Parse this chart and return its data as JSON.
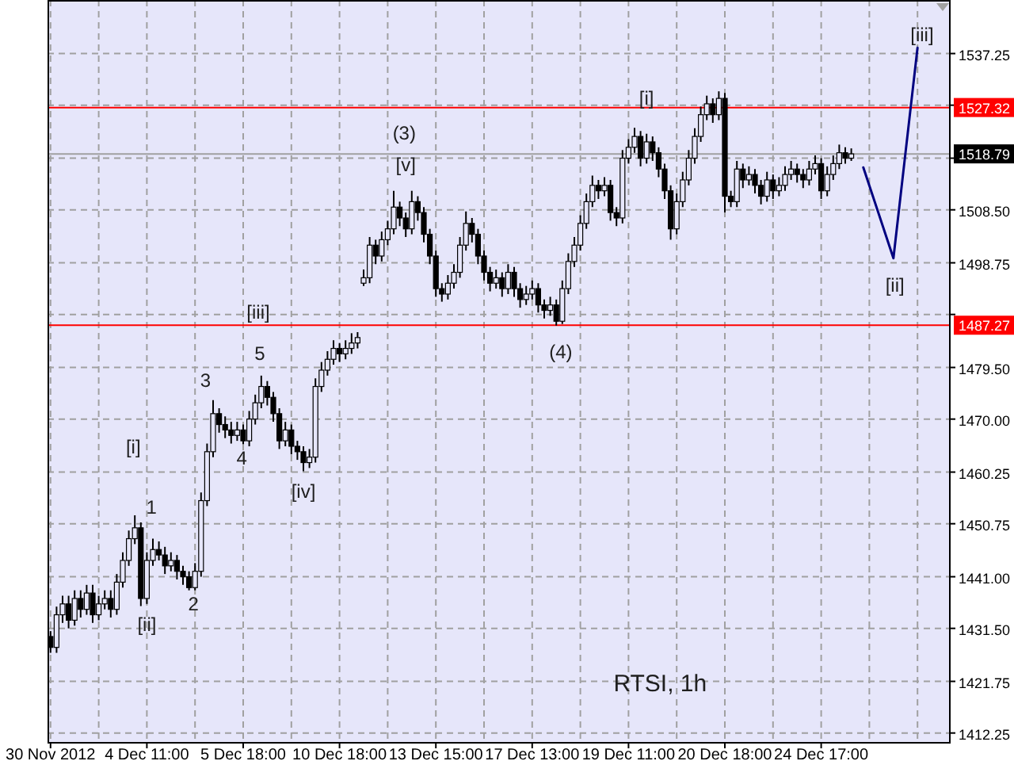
{
  "chart_data": {
    "type": "candlestick",
    "categories": [
      "30 Nov 2012",
      null,
      null,
      null,
      null,
      null,
      null,
      null,
      null,
      null,
      null,
      null,
      null,
      null,
      null,
      null,
      "4 Dec 11:00",
      null,
      null,
      null,
      null,
      null,
      null,
      null,
      null,
      null,
      null,
      null,
      null,
      null,
      null,
      null,
      "5 Dec 18:00",
      null,
      null,
      null,
      null,
      null,
      null,
      null,
      null,
      null,
      null,
      null,
      null,
      null,
      null,
      null,
      "10 Dec 18:00",
      null,
      null,
      null,
      null,
      null,
      null,
      null,
      null,
      null,
      null,
      null,
      null,
      null,
      null,
      null,
      "13 Dec 15:00",
      null,
      null,
      null,
      null,
      null,
      null,
      null,
      null,
      null,
      null,
      null,
      null,
      null,
      null,
      null,
      "17 Dec 13:00",
      null,
      null,
      null,
      null,
      null,
      null,
      null,
      null,
      null,
      null,
      null,
      null,
      null,
      null,
      null,
      "19 Dec 11:00",
      null,
      null,
      null,
      null,
      null,
      null,
      null,
      null,
      null,
      null,
      null,
      null,
      null,
      null,
      null,
      "20 Dec 18:00",
      null,
      null,
      null,
      null,
      null,
      null,
      null,
      null,
      null,
      null,
      null,
      null,
      null,
      null,
      null,
      "24 Dec 17:00",
      null,
      null,
      null,
      null,
      null,
      null,
      null,
      null,
      null,
      null,
      null,
      null,
      null,
      null,
      null,
      null,
      null,
      null,
      null,
      null,
      null
    ],
    "ohlc": [
      [
        1430,
        1431,
        1427,
        1428
      ],
      [
        1428,
        1435.5,
        1427,
        1434
      ],
      [
        1434,
        1437.5,
        1432.5,
        1436
      ],
      [
        1436,
        1437.5,
        1431.5,
        1433
      ],
      [
        1433,
        1438.5,
        1432,
        1437
      ],
      [
        1437,
        1438.5,
        1433.5,
        1435
      ],
      [
        1435,
        1439.5,
        1434,
        1438
      ],
      [
        1438,
        1439.5,
        1432.5,
        1434
      ],
      [
        1434,
        1437.5,
        1433,
        1436
      ],
      [
        1436,
        1438.5,
        1435,
        1437
      ],
      [
        1437,
        1438.5,
        1433.5,
        1435
      ],
      [
        1435,
        1441.5,
        1434,
        1440
      ],
      [
        1440,
        1445.5,
        1439,
        1444
      ],
      [
        1444,
        1449.5,
        1443,
        1448
      ],
      [
        1448,
        1452.3,
        1447,
        1450
      ],
      [
        1450,
        1451,
        1435.6,
        1437
      ],
      [
        1437,
        1445.5,
        1436,
        1444
      ],
      [
        1444,
        1448,
        1443,
        1446
      ],
      [
        1446,
        1447.5,
        1444,
        1445
      ],
      [
        1445,
        1446.5,
        1441.5,
        1443
      ],
      [
        1443,
        1445.5,
        1442,
        1444
      ],
      [
        1444,
        1445,
        1440.5,
        1442
      ],
      [
        1442,
        1443,
        1439.5,
        1441
      ],
      [
        1441,
        1442,
        1438.5,
        1439
      ],
      [
        1439,
        1443.5,
        1438.5,
        1442
      ],
      [
        1442,
        1456.5,
        1441,
        1455
      ],
      [
        1455,
        1465.5,
        1454,
        1464
      ],
      [
        1464,
        1473.5,
        1463,
        1471
      ],
      [
        1471,
        1472,
        1467.5,
        1469
      ],
      [
        1469,
        1470.5,
        1466.5,
        1468
      ],
      [
        1468,
        1469.5,
        1465.5,
        1467
      ],
      [
        1467,
        1469.5,
        1466,
        1468
      ],
      [
        1468,
        1469,
        1465.4,
        1466
      ],
      [
        1466,
        1471.5,
        1465,
        1470
      ],
      [
        1470,
        1474.5,
        1469,
        1473
      ],
      [
        1473,
        1478,
        1472,
        1476
      ],
      [
        1476,
        1477,
        1472.5,
        1474
      ],
      [
        1474,
        1475,
        1469.5,
        1471
      ],
      [
        1471,
        1472,
        1464.5,
        1466
      ],
      [
        1466,
        1469.5,
        1465,
        1468
      ],
      [
        1468,
        1469,
        1463.5,
        1465
      ],
      [
        1465,
        1466,
        1462.5,
        1464
      ],
      [
        1464,
        1465,
        1460.4,
        1462
      ],
      [
        1462,
        1464.5,
        1461,
        1463
      ],
      [
        1463,
        1477.5,
        1462,
        1476
      ],
      [
        1476,
        1480.5,
        1475,
        1479
      ],
      [
        1479,
        1482.5,
        1478,
        1481
      ],
      [
        1481,
        1484.5,
        1480,
        1483
      ],
      [
        1483,
        1484,
        1480.5,
        1482
      ],
      [
        1482,
        1484.5,
        1481,
        1483
      ],
      [
        1483,
        1485.8,
        1482,
        1484
      ],
      [
        1484,
        1486,
        1483,
        1485
      ],
      [
        1495,
        1497.5,
        1494.5,
        1496
      ],
      [
        1496,
        1503.5,
        1495,
        1502
      ],
      [
        1502,
        1503,
        1498.5,
        1500
      ],
      [
        1500,
        1504.5,
        1499,
        1503
      ],
      [
        1503,
        1506.5,
        1502,
        1505
      ],
      [
        1505,
        1512,
        1504,
        1509
      ],
      [
        1509,
        1510,
        1505.5,
        1507
      ],
      [
        1507,
        1508,
        1503.5,
        1505
      ],
      [
        1505,
        1512,
        1504,
        1510
      ],
      [
        1510,
        1511,
        1506.5,
        1508
      ],
      [
        1508,
        1509,
        1502.5,
        1504
      ],
      [
        1504,
        1505,
        1498.5,
        1500
      ],
      [
        1500,
        1501,
        1492.5,
        1494
      ],
      [
        1494,
        1495,
        1491.6,
        1493
      ],
      [
        1493,
        1496.5,
        1492,
        1495
      ],
      [
        1495,
        1498.5,
        1494,
        1497
      ],
      [
        1497,
        1503.5,
        1496,
        1502
      ],
      [
        1502,
        1508.2,
        1501,
        1506
      ],
      [
        1506,
        1507,
        1502.5,
        1504
      ],
      [
        1504,
        1505,
        1498.5,
        1500
      ],
      [
        1500,
        1501,
        1495.5,
        1497
      ],
      [
        1497,
        1498,
        1493.5,
        1495
      ],
      [
        1495,
        1497.5,
        1494,
        1496
      ],
      [
        1496,
        1497,
        1492.5,
        1494
      ],
      [
        1494,
        1498.5,
        1493,
        1497
      ],
      [
        1497,
        1498,
        1492.5,
        1494
      ],
      [
        1494,
        1495,
        1490.5,
        1492
      ],
      [
        1492,
        1494.5,
        1491,
        1493
      ],
      [
        1493,
        1495.5,
        1492,
        1494
      ],
      [
        1494,
        1495,
        1489.6,
        1491
      ],
      [
        1491,
        1492,
        1488.5,
        1490
      ],
      [
        1490,
        1492.5,
        1489,
        1491
      ],
      [
        1491,
        1492,
        1487.2,
        1488
      ],
      [
        1488,
        1495.5,
        1487.5,
        1494
      ],
      [
        1494,
        1500.5,
        1493,
        1499
      ],
      [
        1499,
        1503.5,
        1498,
        1502
      ],
      [
        1502,
        1507.5,
        1501,
        1506
      ],
      [
        1506,
        1511.5,
        1505,
        1510
      ],
      [
        1510,
        1514.8,
        1509,
        1513
      ],
      [
        1513,
        1514,
        1510.5,
        1512
      ],
      [
        1512,
        1514.5,
        1511,
        1513
      ],
      [
        1513,
        1514,
        1506.5,
        1508
      ],
      [
        1508,
        1509,
        1505.5,
        1507
      ],
      [
        1507,
        1519.5,
        1506,
        1518
      ],
      [
        1518,
        1521.5,
        1517,
        1520
      ],
      [
        1520,
        1523.6,
        1519,
        1522
      ],
      [
        1522,
        1523,
        1516.5,
        1518
      ],
      [
        1518,
        1522.5,
        1517,
        1521
      ],
      [
        1521,
        1522,
        1517.5,
        1519
      ],
      [
        1519,
        1520,
        1514.5,
        1516
      ],
      [
        1516,
        1517,
        1510.5,
        1512
      ],
      [
        1512,
        1513,
        1503,
        1505
      ],
      [
        1505,
        1511.5,
        1504,
        1510
      ],
      [
        1510,
        1515.5,
        1509,
        1514
      ],
      [
        1514,
        1519.5,
        1513,
        1518
      ],
      [
        1518,
        1523.5,
        1517,
        1522
      ],
      [
        1522,
        1527.5,
        1521,
        1526
      ],
      [
        1526,
        1529.5,
        1525,
        1528
      ],
      [
        1528,
        1529,
        1524.5,
        1526
      ],
      [
        1526,
        1530.3,
        1525,
        1529
      ],
      [
        1529,
        1530,
        1508,
        1511
      ],
      [
        1511,
        1512,
        1509,
        1510
      ],
      [
        1510,
        1517.5,
        1509,
        1516
      ],
      [
        1516,
        1517,
        1512.5,
        1514
      ],
      [
        1514,
        1516.5,
        1513,
        1515
      ],
      [
        1515,
        1516,
        1511.5,
        1513
      ],
      [
        1513,
        1514,
        1509.5,
        1511
      ],
      [
        1511,
        1515.5,
        1510,
        1514
      ],
      [
        1514,
        1515,
        1510.5,
        1512
      ],
      [
        1512,
        1514.5,
        1511,
        1513
      ],
      [
        1513,
        1516.5,
        1512,
        1515
      ],
      [
        1515,
        1517.5,
        1514,
        1516
      ],
      [
        1516,
        1517,
        1513.5,
        1515
      ],
      [
        1515,
        1516,
        1512.5,
        1514
      ],
      [
        1514,
        1517.5,
        1513,
        1516
      ],
      [
        1516,
        1518.5,
        1515,
        1517
      ],
      [
        1517,
        1518,
        1510.5,
        1512
      ],
      [
        1512,
        1516.5,
        1511,
        1515
      ],
      [
        1515,
        1518.5,
        1514,
        1517
      ],
      [
        1517,
        1520.5,
        1516,
        1519
      ],
      [
        1519,
        1520,
        1517,
        1518
      ],
      [
        1518,
        1519.8,
        1517.5,
        1518.79
      ],
      null,
      null,
      null,
      null,
      null,
      null,
      null,
      null,
      null,
      null,
      null,
      null,
      null,
      null,
      null,
      null
    ],
    "series": [
      {
        "type": "line",
        "color": "#000080",
        "values": [
          null,
          null,
          null,
          null,
          null,
          null,
          null,
          null,
          null,
          null,
          null,
          null,
          null,
          null,
          null,
          null,
          null,
          null,
          null,
          null,
          null,
          null,
          null,
          null,
          null,
          null,
          null,
          null,
          null,
          null,
          null,
          null,
          null,
          null,
          null,
          null,
          null,
          null,
          null,
          null,
          null,
          null,
          null,
          null,
          null,
          null,
          null,
          null,
          null,
          null,
          null,
          null,
          null,
          null,
          null,
          null,
          null,
          null,
          null,
          null,
          null,
          null,
          null,
          null,
          null,
          null,
          null,
          null,
          null,
          null,
          null,
          null,
          null,
          null,
          null,
          null,
          null,
          null,
          null,
          null,
          null,
          null,
          null,
          null,
          null,
          null,
          null,
          null,
          null,
          null,
          null,
          null,
          null,
          null,
          null,
          null,
          null,
          null,
          null,
          null,
          null,
          null,
          null,
          null,
          null,
          null,
          null,
          null,
          null,
          null,
          null,
          null,
          null,
          null,
          null,
          null,
          null,
          null,
          null,
          null,
          null,
          null,
          null,
          null,
          null,
          null,
          null,
          null,
          null,
          null,
          null,
          null,
          null,
          null,
          null,
          1516.3,
          null,
          null,
          null,
          null,
          1499.6,
          null,
          null,
          null,
          1538.3,
          null,
          null,
          null,
          null,
          null
        ]
      }
    ],
    "ylim": [
      1410.6,
      1547.1
    ],
    "yticks": [
      {
        "value": 1412.25,
        "label": "1412.25"
      },
      {
        "value": 1421.75,
        "label": "1421.75"
      },
      {
        "value": 1431.5,
        "label": "1431.50"
      },
      {
        "value": 1441,
        "label": "1441.00"
      },
      {
        "value": 1450.75,
        "label": "1450.75"
      },
      {
        "value": 1460.25,
        "label": "1460.25"
      },
      {
        "value": 1470,
        "label": "1470.00"
      },
      {
        "value": 1479.5,
        "label": "1479.50"
      },
      {
        "value": 1489.25,
        "label": null
      },
      {
        "value": 1498.75,
        "label": "1498.75"
      },
      {
        "value": 1508.5,
        "label": "1508.50"
      },
      {
        "value": 1518,
        "label": null
      },
      {
        "value": 1527.75,
        "label": null
      },
      {
        "value": 1537.25,
        "label": "1537.25"
      }
    ],
    "grid": true,
    "ref_lines": [
      {
        "axis": "y",
        "value": 1527.32,
        "label": "1527.32",
        "color": "#ff0000"
      },
      {
        "axis": "y",
        "value": 1518.79,
        "label": "1518.79",
        "color": "#a0a0a0"
      },
      {
        "axis": "y",
        "value": 1487.27,
        "label": "1487.27",
        "color": "#ff0000"
      }
    ],
    "annotations": [
      "[i]",
      "1",
      "[ii]",
      "2",
      "3",
      "4",
      "5",
      "[iii]",
      "[iv]",
      "(3)",
      "[v]",
      "(4)",
      "[i]",
      "[ii]",
      "[iii]",
      "RTSI, 1h"
    ]
  }
}
